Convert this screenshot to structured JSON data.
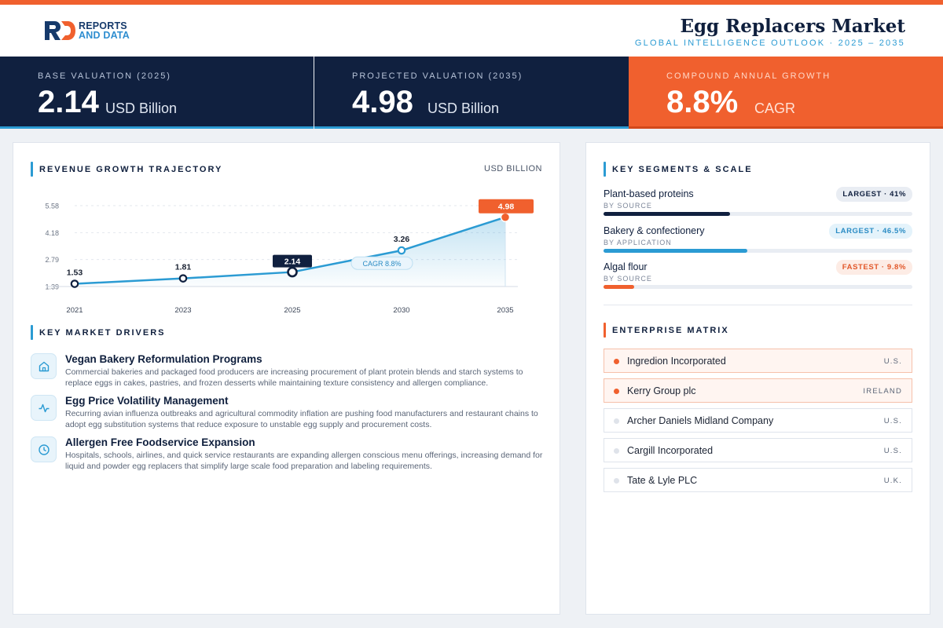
{
  "header": {
    "brand_line1": "REPORTS",
    "brand_line2": "AND DATA",
    "title": "Egg Replacers Market",
    "subtitle": "GLOBAL INTELLIGENCE OUTLOOK  ·  2025 – 2035"
  },
  "kpis": [
    {
      "label": "BASE VALUATION (2025)",
      "value": "2.14",
      "unit": "USD Billion"
    },
    {
      "label": "PROJECTED VALUATION (2035)",
      "value": "4.98",
      "unit": "USD Billion"
    },
    {
      "label": "COMPOUND ANNUAL GROWTH",
      "value": "8.8%",
      "unit": "CAGR"
    }
  ],
  "chart_section": {
    "title": "REVENUE GROWTH TRAJECTORY",
    "unit": "USD BILLION"
  },
  "chart_data": {
    "type": "area",
    "x": [
      "2021",
      "2023",
      "2025",
      "2030",
      "2035"
    ],
    "values": [
      1.53,
      1.81,
      2.14,
      3.26,
      4.98
    ],
    "data_labels": [
      "1.53",
      "1.81",
      "2.14",
      "3.26",
      "4.98"
    ],
    "highlighted_points": [
      "2025",
      "2035"
    ],
    "y_ticks": [
      "5.58",
      "4.18",
      "2.79",
      "1.39"
    ],
    "y_tick_values": [
      5.58,
      4.18,
      2.79,
      1.39
    ],
    "ylim": [
      1.39,
      5.58
    ],
    "annotation": "CAGR 8.8%",
    "grid": true,
    "colors": {
      "line": "#2b9bd3",
      "highlight": "#10203f",
      "end": "#f0602e"
    }
  },
  "drivers_section": {
    "title": "KEY MARKET DRIVERS"
  },
  "drivers": [
    {
      "icon": "home-icon",
      "title": "Vegan Bakery Reformulation Programs",
      "desc": "Commercial bakeries and packaged food producers are increasing procurement of plant protein blends and starch systems to replace eggs in cakes, pastries, and frozen desserts while maintaining texture consistency and allergen compliance."
    },
    {
      "icon": "activity-icon",
      "title": "Egg Price Volatility Management",
      "desc": "Recurring avian influenza outbreaks and agricultural commodity inflation are pushing food manufacturers and restaurant chains to adopt egg substitution systems that reduce exposure to unstable egg supply and procurement costs."
    },
    {
      "icon": "clock-icon",
      "title": "Allergen Free Foodservice Expansion",
      "desc": "Hospitals, schools, airlines, and quick service restaurants are expanding allergen conscious menu offerings, increasing demand for liquid and powder egg replacers that simplify large scale food preparation and labeling requirements."
    }
  ],
  "segments_section": {
    "title": "KEY SEGMENTS & SCALE"
  },
  "segments": [
    {
      "name": "Plant-based proteins",
      "sub": "BY SOURCE",
      "badge": "LARGEST · 41%",
      "share": 41,
      "color": "#10203f",
      "badge_bg": "#e9edf3",
      "badge_fg": "#10203f"
    },
    {
      "name": "Bakery & confectionery",
      "sub": "BY APPLICATION",
      "badge": "LARGEST · 46.5%",
      "share": 46.5,
      "color": "#2b9bd3",
      "badge_bg": "#e4f3fb",
      "badge_fg": "#2b8cc4"
    },
    {
      "name": "Algal flour",
      "sub": "BY SOURCE",
      "badge": "FASTEST · 9.8%",
      "share": 9.8,
      "color": "#f0602e",
      "badge_bg": "#fdece5",
      "badge_fg": "#e2582a"
    }
  ],
  "enterprise_section": {
    "title": "ENTERPRISE MATRIX"
  },
  "enterprises": [
    {
      "name": "Ingredion Incorporated",
      "country": "U.S.",
      "highlight": true
    },
    {
      "name": "Kerry Group plc",
      "country": "IRELAND",
      "highlight": true
    },
    {
      "name": "Archer Daniels Midland Company",
      "country": "U.S.",
      "highlight": false
    },
    {
      "name": "Cargill Incorporated",
      "country": "U.S.",
      "highlight": false
    },
    {
      "name": "Tate & Lyle PLC",
      "country": "U.K.",
      "highlight": false
    }
  ]
}
